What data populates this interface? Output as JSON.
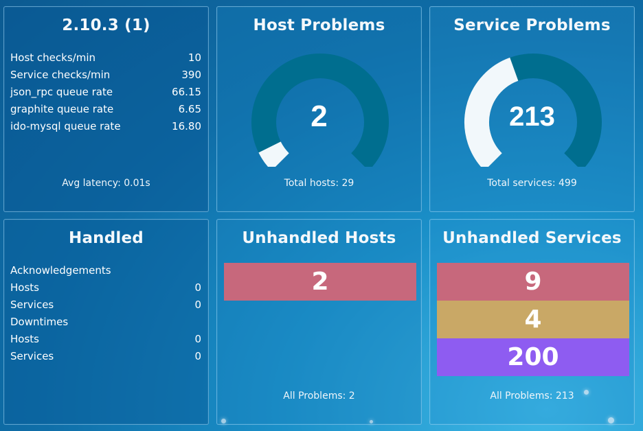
{
  "colors": {
    "gauge_track": "#006e8f",
    "gauge_fill": "#f2f8fb",
    "critical": "#c7687c",
    "warning": "#c9a866",
    "unknown": "#8e5cf1"
  },
  "status": {
    "title": "2.10.3 (1)",
    "rows": [
      {
        "label": "Host checks/min",
        "value": "10"
      },
      {
        "label": "Service checks/min",
        "value": "390"
      },
      {
        "label": "json_rpc queue rate",
        "value": "66.15"
      },
      {
        "label": "graphite queue rate",
        "value": "6.65"
      },
      {
        "label": "ido-mysql queue rate",
        "value": "16.80"
      }
    ],
    "footer": "Avg latency: 0.01s"
  },
  "host_problems": {
    "title": "Host Problems",
    "value": "2",
    "total": 29,
    "footer": "Total hosts: 29"
  },
  "service_problems": {
    "title": "Service Problems",
    "value": "213",
    "total": 499,
    "footer": "Total services: 499"
  },
  "handled": {
    "title": "Handled",
    "ack_heading": "Acknowledgements",
    "ack_rows": [
      {
        "label": "Hosts",
        "value": "0"
      },
      {
        "label": "Services",
        "value": "0"
      }
    ],
    "down_heading": "Downtimes",
    "down_rows": [
      {
        "label": "Hosts",
        "value": "0"
      },
      {
        "label": "Services",
        "value": "0"
      }
    ]
  },
  "unhandled_hosts": {
    "title": "Unhandled Hosts",
    "bars": [
      {
        "value": "2",
        "color": "#c7687c"
      }
    ],
    "footer": "All Problems: 2"
  },
  "unhandled_services": {
    "title": "Unhandled Services",
    "bars": [
      {
        "value": "9",
        "color": "#c7687c"
      },
      {
        "value": "4",
        "color": "#c9a866"
      },
      {
        "value": "200",
        "color": "#8e5cf1"
      }
    ],
    "footer": "All Problems: 213"
  }
}
